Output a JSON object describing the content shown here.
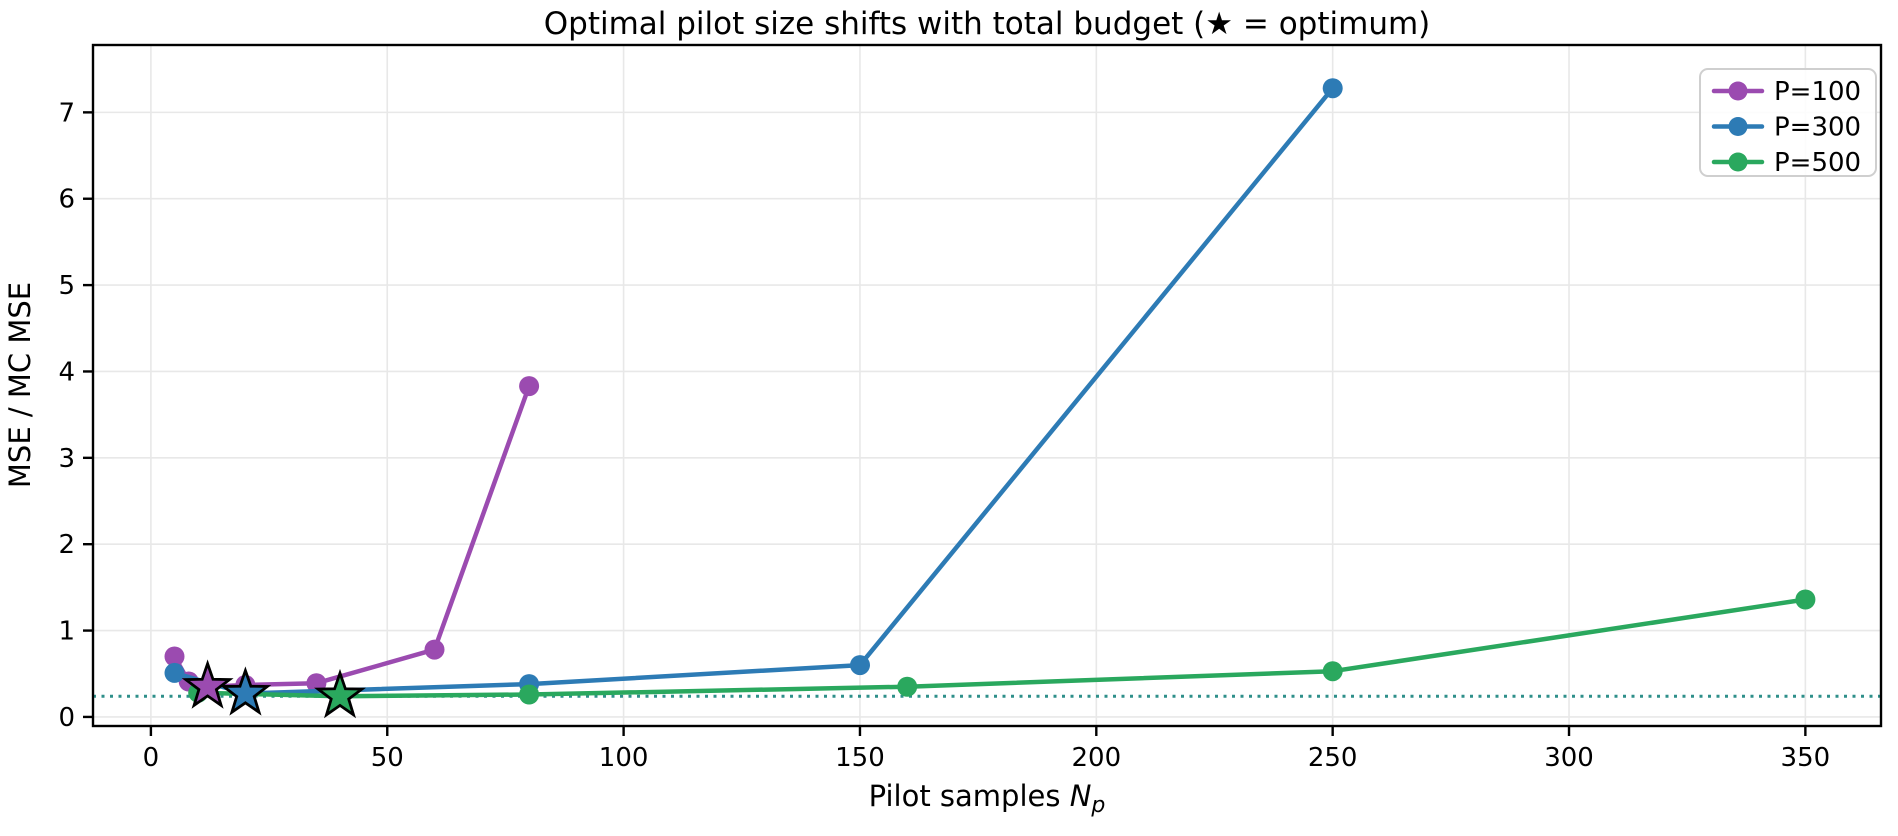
{
  "chart_data": {
    "type": "line",
    "title": "Optimal pilot size shifts with total budget (★ = optimum)",
    "ylabel": "MSE / MC MSE",
    "xlabel": {
      "prefix": "Pilot samples",
      "var": "N",
      "sub": "p"
    },
    "xlim": [
      -12.25,
      366
    ],
    "ylim": [
      -0.105,
      7.78
    ],
    "x_ticks": [
      0,
      50,
      100,
      150,
      200,
      250,
      300,
      350
    ],
    "y_ticks": [
      0,
      1,
      2,
      3,
      4,
      5,
      6,
      7
    ],
    "grid": true,
    "legend_position": "upper right",
    "reference_line": {
      "y": 0.24,
      "style": "dotted",
      "color": "#2e8f8a"
    },
    "series": [
      {
        "name": "P=100",
        "color": "#9b4bb0",
        "x": [
          5,
          8,
          12,
          20,
          35,
          60,
          80
        ],
        "y": [
          0.7,
          0.41,
          0.35,
          0.37,
          0.39,
          0.78,
          3.83
        ],
        "optimum": {
          "x": 12,
          "y": 0.35
        }
      },
      {
        "name": "P=300",
        "color": "#2d7bb5",
        "x": [
          5,
          20,
          80,
          150,
          250
        ],
        "y": [
          0.51,
          0.27,
          0.38,
          0.6,
          7.28
        ],
        "optimum": {
          "x": 20,
          "y": 0.27
        }
      },
      {
        "name": "P=500",
        "color": "#2aa85e",
        "x": [
          10,
          40,
          80,
          160,
          250,
          350
        ],
        "y": [
          0.28,
          0.24,
          0.26,
          0.35,
          0.53,
          1.36
        ],
        "optimum": {
          "x": 40,
          "y": 0.24
        }
      }
    ],
    "colors": {
      "background": "#ffffff",
      "grid": "#e8e8e8",
      "spine": "#000000",
      "text": "#000000"
    }
  }
}
